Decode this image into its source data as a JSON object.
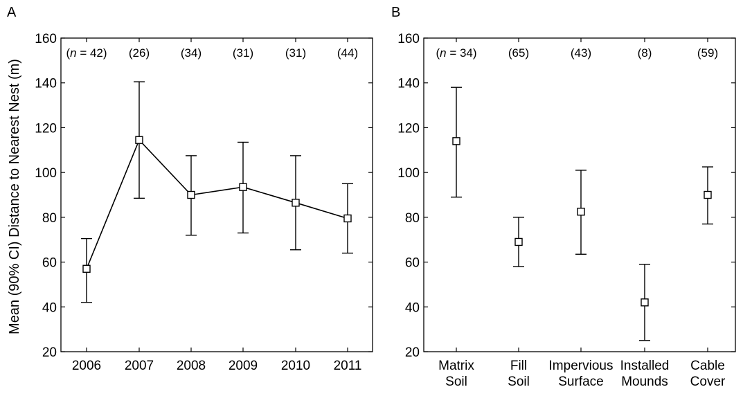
{
  "figure": {
    "ylabel": "Mean (90% CI) Distance to Nearest Nest (m)"
  },
  "chart_data": [
    {
      "panel_label": "A",
      "type": "line",
      "connected": true,
      "categories": [
        "2006",
        "2007",
        "2008",
        "2009",
        "2010",
        "2011"
      ],
      "x_tick_lines": [
        [
          "2006"
        ],
        [
          "2007"
        ],
        [
          "2008"
        ],
        [
          "2009"
        ],
        [
          "2010"
        ],
        [
          "2011"
        ]
      ],
      "n_labels": [
        {
          "italic": "n",
          "rest": " = 42"
        },
        {
          "italic": "",
          "rest": "26"
        },
        {
          "italic": "",
          "rest": "34"
        },
        {
          "italic": "",
          "rest": "31"
        },
        {
          "italic": "",
          "rest": "31"
        },
        {
          "italic": "",
          "rest": "44"
        }
      ],
      "series": [
        {
          "values": [
            57,
            114.5,
            90,
            93.5,
            86.5,
            79.5
          ],
          "ci_low": [
            42,
            88.5,
            72,
            73,
            65.5,
            64
          ],
          "ci_high": [
            70.5,
            140.5,
            107.5,
            113.5,
            107.5,
            95
          ]
        }
      ],
      "ylim": [
        20,
        160
      ],
      "yticks": [
        20,
        40,
        60,
        80,
        100,
        120,
        140,
        160
      ],
      "marker": "square",
      "grid": false
    },
    {
      "panel_label": "B",
      "type": "scatter",
      "connected": false,
      "categories": [
        "Matrix Soil",
        "Fill Soil",
        "Impervious Surface",
        "Installed Mounds",
        "Cable Cover"
      ],
      "x_tick_lines": [
        [
          "Matrix",
          "Soil"
        ],
        [
          "Fill",
          "Soil"
        ],
        [
          "Impervious",
          "Surface"
        ],
        [
          "Installed",
          "Mounds"
        ],
        [
          "Cable",
          "Cover"
        ]
      ],
      "n_labels": [
        {
          "italic": "n",
          "rest": " = 34"
        },
        {
          "italic": "",
          "rest": "65"
        },
        {
          "italic": "",
          "rest": "43"
        },
        {
          "italic": "",
          "rest": "8"
        },
        {
          "italic": "",
          "rest": "59"
        }
      ],
      "series": [
        {
          "values": [
            114,
            69,
            82.5,
            42,
            90
          ],
          "ci_low": [
            89,
            58,
            63.5,
            25,
            77
          ],
          "ci_high": [
            138,
            80,
            101,
            59,
            102.5
          ]
        }
      ],
      "ylim": [
        20,
        160
      ],
      "yticks": [
        20,
        40,
        60,
        80,
        100,
        120,
        140,
        160
      ],
      "marker": "square",
      "grid": false
    }
  ]
}
